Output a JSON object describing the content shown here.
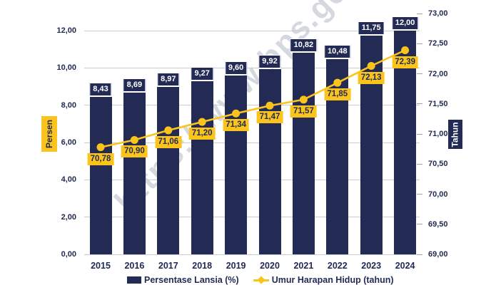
{
  "watermark": {
    "text": "https://www.bps.go.id"
  },
  "colors": {
    "navy": "#232B55",
    "yellow": "#FBC41D",
    "grid": "#C9CDD3",
    "watermark_gray": "#9AA2B0",
    "white": "#FFFFFF"
  },
  "legend": {
    "items": [
      {
        "label": "Persentase Lansia (%)",
        "marker": "square"
      },
      {
        "label": "Umur Harapan Hidup (tahun)",
        "marker": "diamond-line"
      }
    ]
  },
  "chart_data": {
    "type": "combo",
    "categories": [
      "2015",
      "2016",
      "2017",
      "2018",
      "2019",
      "2020",
      "2021",
      "2022",
      "2023",
      "2024"
    ],
    "series": [
      {
        "name": "Persentase Lansia (%)",
        "type": "bar",
        "axis": "left",
        "values": [
          8.43,
          8.69,
          8.97,
          9.27,
          9.6,
          9.92,
          10.82,
          10.48,
          11.75,
          12.0
        ],
        "labels": [
          "8,43",
          "8,69",
          "8,97",
          "9,27",
          "9,60",
          "9,92",
          "10,82",
          "10,48",
          "11,75",
          "12,00"
        ]
      },
      {
        "name": "Umur Harapan Hidup (tahun)",
        "type": "line",
        "axis": "right",
        "values": [
          70.78,
          70.9,
          71.06,
          71.2,
          71.34,
          71.47,
          71.57,
          71.85,
          72.13,
          72.39
        ],
        "labels": [
          "70,78",
          "70,90",
          "71,06",
          "71,20",
          "71,34",
          "71,47",
          "71,57",
          "71,85",
          "72,13",
          "72,39"
        ]
      }
    ],
    "left_axis": {
      "title": "Persen",
      "min": 0,
      "max": 12,
      "step": 2,
      "tick_labels": [
        "0,00",
        "2,00",
        "4,00",
        "6,00",
        "8,00",
        "10,00",
        "12,00"
      ]
    },
    "right_axis": {
      "title": "Tahun",
      "min": 69,
      "max": 73,
      "step": 0.5,
      "tick_labels": [
        "69,00",
        "69,50",
        "70,00",
        "70,50",
        "71,00",
        "71,50",
        "72,00",
        "72,50",
        "73,00"
      ]
    },
    "grid": true,
    "legend_position": "bottom"
  }
}
